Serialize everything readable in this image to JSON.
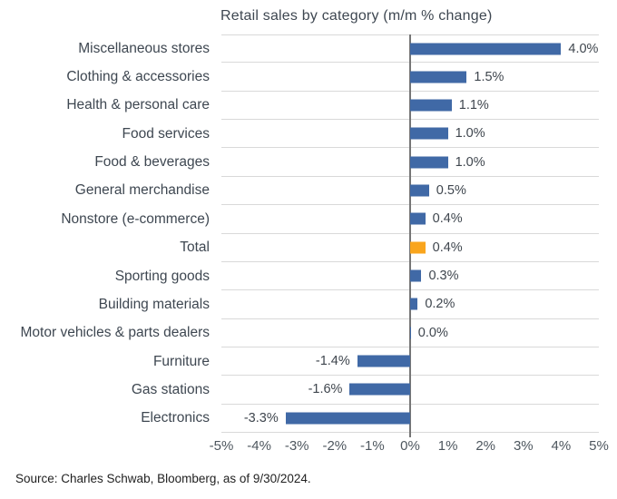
{
  "chart_data": {
    "type": "bar",
    "orientation": "horizontal",
    "title": "Retail sales by category (m/m % change)",
    "categories": [
      "Miscellaneous stores",
      "Clothing & accessories",
      "Health & personal care",
      "Food services",
      "Food & beverages",
      "General merchandise",
      "Nonstore (e-commerce)",
      "Total",
      "Sporting goods",
      "Building materials",
      "Motor vehicles & parts dealers",
      "Furniture",
      "Gas stations",
      "Electronics"
    ],
    "values": [
      4.0,
      1.5,
      1.1,
      1.0,
      1.0,
      0.5,
      0.4,
      0.4,
      0.3,
      0.2,
      0.0,
      -1.4,
      -1.6,
      -3.3
    ],
    "value_labels": [
      "4.0%",
      "1.5%",
      "1.1%",
      "1.0%",
      "1.0%",
      "0.5%",
      "0.4%",
      "0.4%",
      "0.3%",
      "0.2%",
      "0.0%",
      "-1.4%",
      "-1.6%",
      "-3.3%"
    ],
    "highlight_category": "Total",
    "xlim": [
      -5,
      5
    ],
    "x_ticks": [
      "-5%",
      "-4%",
      "-3%",
      "-2%",
      "-1%",
      "0%",
      "1%",
      "2%",
      "3%",
      "4%",
      "5%"
    ],
    "grid": "row-separators",
    "legend": "none",
    "colors": {
      "bar": "#4069a6",
      "highlight": "#f9a51d",
      "gridline": "#d9d9d9",
      "zero_line": "#767676",
      "text": "#3e4751"
    }
  },
  "source": "Source: Charles Schwab, Bloomberg, as of 9/30/2024."
}
